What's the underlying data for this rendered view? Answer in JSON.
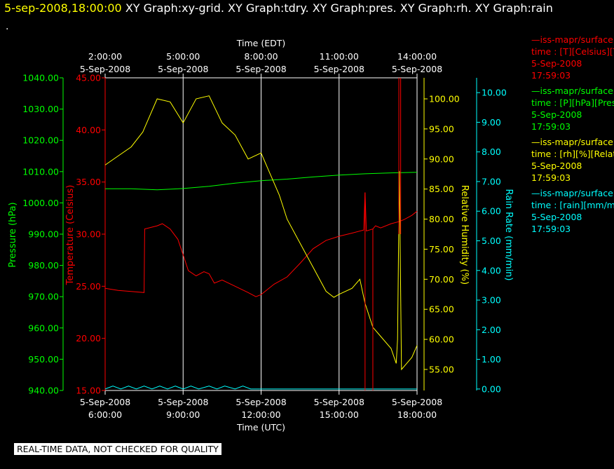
{
  "header": {
    "timestamp": "5-sep-2008,18:00:00",
    "graphs": "XY Graph:xy-grid.  XY Graph:tdry.  XY Graph:pres.  XY Graph:rh.  XY Graph:rain",
    "second_line": "."
  },
  "legend": [
    {
      "title": "iss-mapr/surface",
      "var": "time : [T][Celsius][T",
      "date": "5-Sep-2008",
      "time": "17:59:03",
      "color": "#ff0000"
    },
    {
      "title": "iss-mapr/surface",
      "var": "time : [P][hPa][Press",
      "date": "5-Sep-2008",
      "time": "17:59:03",
      "color": "#00ff00"
    },
    {
      "title": "iss-mapr/surface",
      "var": "time : [rh][%][Relati",
      "date": "5-Sep-2008",
      "time": "17:59:03",
      "color": "#ffff00"
    },
    {
      "title": "iss-mapr/surface",
      "var": "time : [rain][mm/min",
      "date": "5-Sep-2008",
      "time": "17:59:03",
      "color": "#00ffff"
    }
  ],
  "footer": "REAL-TIME DATA, NOT CHECKED FOR QUALITY",
  "chart_data": {
    "type": "line",
    "top_axis": {
      "title": "Time (EDT)",
      "ticks": [
        [
          "2:00:00",
          "5-Sep-2008"
        ],
        [
          "5:00:00",
          "5-Sep-2008"
        ],
        [
          "8:00:00",
          "5-Sep-2008"
        ],
        [
          "11:00:00",
          "5-Sep-2008"
        ],
        [
          "14:00:00",
          "5-Sep-2008"
        ]
      ]
    },
    "bottom_axis": {
      "title": "Time (UTC)",
      "ticks": [
        [
          "5-Sep-2008",
          "6:00:00"
        ],
        [
          "5-Sep-2008",
          "9:00:00"
        ],
        [
          "5-Sep-2008",
          "12:00:00"
        ],
        [
          "5-Sep-2008",
          "15:00:00"
        ],
        [
          "5-Sep-2008",
          "18:00:00"
        ]
      ]
    },
    "xlim": [
      6,
      18
    ],
    "x_unit": "hour UTC, 5-Sep-2008",
    "grid": "vertical",
    "axes": {
      "pressure": {
        "label": "Pressure (hPa)",
        "color": "#00ff00",
        "ylim": [
          940,
          1040
        ],
        "ticks": [
          "940.00",
          "950.00",
          "960.00",
          "970.00",
          "980.00",
          "990.00",
          "1000.00",
          "1010.00",
          "1020.00",
          "1030.00",
          "1040.00"
        ]
      },
      "temperature": {
        "label": "Temperature (Celsius)",
        "color": "#ff0000",
        "ylim": [
          15,
          45
        ],
        "ticks": [
          "15.00",
          "20.00",
          "25.00",
          "30.00",
          "35.00",
          "40.00",
          "45.00"
        ]
      },
      "rh": {
        "label": "Relative Humidity (%)",
        "color": "#ffff00",
        "ylim": [
          51.5,
          103.5
        ],
        "ticks": [
          "55.00",
          "60.00",
          "65.00",
          "70.00",
          "75.00",
          "80.00",
          "85.00",
          "90.00",
          "95.00",
          "100.00"
        ]
      },
      "rain": {
        "label": "Rain Rate (mm/min)",
        "color": "#00ffff",
        "ylim": [
          -0.05,
          10.5
        ],
        "ticks": [
          "0.00",
          "1.00",
          "2.00",
          "3.00",
          "4.00",
          "5.00",
          "6.00",
          "7.00",
          "8.00",
          "9.00",
          "10.00"
        ]
      }
    },
    "series": [
      {
        "name": "iss-mapr/surface",
        "axis": "temperature",
        "color": "#ff0000",
        "x": [
          6.0,
          6.5,
          7.0,
          7.5,
          7.52,
          8.0,
          8.2,
          8.5,
          8.8,
          9.0,
          9.2,
          9.5,
          9.8,
          10.0,
          10.2,
          10.5,
          11.0,
          11.5,
          11.8,
          12.0,
          12.5,
          13.0,
          13.5,
          14.0,
          14.5,
          15.0,
          15.5,
          15.95,
          16.0,
          16.05,
          16.3,
          16.4,
          16.6,
          17.0,
          17.3,
          17.5,
          17.8,
          18.0
        ],
        "y": [
          24.8,
          24.6,
          24.5,
          24.4,
          30.5,
          30.8,
          31.0,
          30.5,
          29.5,
          28.0,
          26.5,
          26.0,
          26.4,
          26.2,
          25.3,
          25.6,
          25.0,
          24.4,
          24.0,
          24.2,
          25.2,
          25.9,
          27.2,
          28.6,
          29.4,
          29.8,
          30.1,
          30.4,
          34.0,
          30.3,
          30.5,
          30.8,
          30.6,
          31.0,
          31.2,
          31.4,
          31.8,
          32.2
        ]
      },
      {
        "name": "iss-mapr/surface",
        "axis": "pressure",
        "color": "#00ff00",
        "x": [
          6.0,
          7.0,
          8.0,
          9.0,
          10.0,
          11.0,
          12.0,
          13.0,
          14.0,
          15.0,
          16.0,
          17.0,
          18.0
        ],
        "y": [
          1004.5,
          1004.5,
          1004.2,
          1004.6,
          1005.3,
          1006.3,
          1007.1,
          1007.6,
          1008.3,
          1008.9,
          1009.3,
          1009.6,
          1009.8
        ]
      },
      {
        "name": "iss-mapr/surface",
        "axis": "rh",
        "color": "#ffff00",
        "x": [
          6.0,
          6.5,
          7.0,
          7.45,
          7.5,
          8.0,
          8.5,
          9.0,
          9.5,
          10.0,
          10.5,
          11.0,
          11.5,
          12.0,
          12.3,
          12.7,
          13.0,
          13.5,
          14.0,
          14.5,
          14.8,
          15.0,
          15.5,
          15.8,
          16.0,
          16.3,
          16.5,
          17.0,
          17.2,
          17.25,
          17.32,
          17.4,
          17.6,
          17.8,
          18.0
        ],
        "y": [
          89.0,
          90.5,
          92.0,
          94.5,
          95.0,
          100.0,
          99.5,
          96.0,
          100.0,
          100.5,
          96.0,
          94.0,
          90.0,
          91.0,
          88.0,
          84.0,
          80.0,
          76.0,
          72.0,
          68.0,
          67.0,
          67.5,
          68.5,
          70.0,
          66.0,
          62.0,
          61.0,
          58.5,
          56.0,
          60.0,
          88.0,
          55.0,
          56.0,
          57.0,
          59.0
        ]
      },
      {
        "name": "iss-mapr/surface",
        "axis": "rain",
        "color": "#00ffff",
        "x": [
          6.0,
          6.3,
          6.6,
          6.9,
          7.2,
          7.5,
          7.8,
          8.1,
          8.4,
          8.7,
          9.0,
          9.3,
          9.6,
          10.0,
          10.3,
          10.6,
          11.0,
          11.3,
          11.6,
          12.0,
          14.0,
          16.0,
          18.0
        ],
        "y": [
          0.0,
          0.1,
          0.0,
          0.1,
          0.0,
          0.1,
          0.0,
          0.1,
          0.0,
          0.1,
          0.0,
          0.1,
          0.0,
          0.1,
          0.0,
          0.1,
          0.0,
          0.1,
          0.0,
          0.0,
          0.0,
          0.0,
          0.0
        ]
      }
    ],
    "spikes": [
      {
        "axis": "temperature",
        "color": "#ff0000",
        "x": 16.0,
        "y_from": 15.0,
        "y_to": 34.0
      },
      {
        "axis": "temperature",
        "color": "#ff0000",
        "x": 16.3,
        "y_from": 15.0,
        "y_to": 30.5
      },
      {
        "axis": "temperature",
        "color": "#ff0000",
        "x": 17.3,
        "y_from": 30.0,
        "y_to": 45.0
      },
      {
        "axis": "temperature",
        "color": "#ff0000",
        "x": 17.37,
        "y_from": 30.0,
        "y_to": 45.0
      }
    ]
  }
}
